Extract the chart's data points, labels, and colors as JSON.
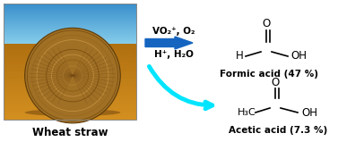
{
  "fig_width": 3.77,
  "fig_height": 1.68,
  "dpi": 100,
  "bg_color": "#ffffff",
  "wheat_straw_label": "Wheat straw",
  "wheat_straw_label_fontsize": 8.5,
  "wheat_straw_label_fontweight": "bold",
  "arrow1_color": "#1565C0",
  "arrow2_color": "#00E5FF",
  "arrow1_label_line1": "VO₂⁺, O₂",
  "arrow1_label_line2": "H⁺, H₂O",
  "arrow_label_fontsize": 7.5,
  "arrow_label_fontweight": "bold",
  "formic_acid_label": "Formic acid (47 %)",
  "acetic_acid_label": "Acetic acid (7.3 %)",
  "product_label_fontsize": 7.5,
  "product_label_fontweight": "bold",
  "chem_fontsize": 8.5,
  "sky_color": "#6BB8E8",
  "sky_top_color": "#3A8FCC",
  "field_color": "#C4872A",
  "field_dark": "#A06820",
  "bale_outer": "#8B5E15",
  "bale_mid": "#A07025",
  "bale_light": "#C49040",
  "bale_dark": "#5C3A08"
}
